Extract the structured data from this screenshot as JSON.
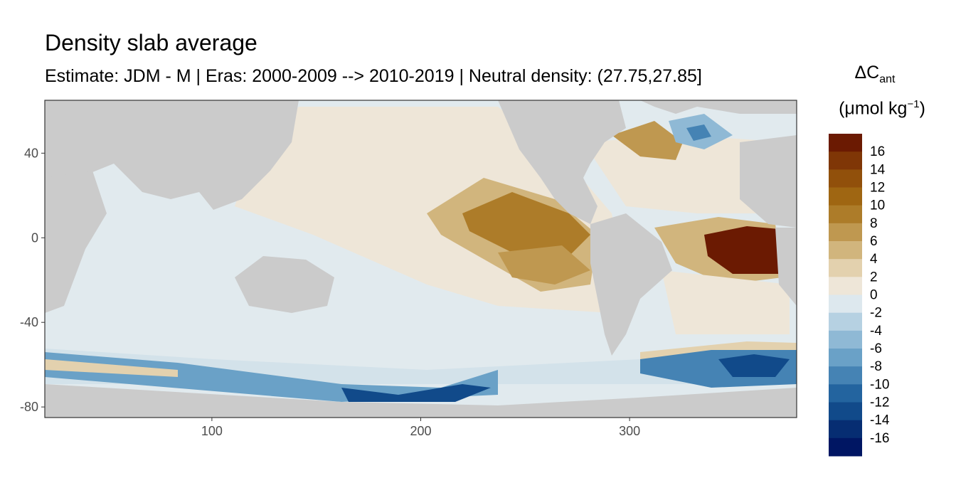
{
  "chart_data": {
    "type": "heatmap",
    "title": "Density slab average",
    "subtitle": "Estimate: JDM - M | Eras: 2000-2009 --> 2010-2019 | Neutral density: (27.75,27.85]",
    "xlabel": "",
    "ylabel": "",
    "x_ticks": [
      100,
      200,
      300
    ],
    "y_ticks": [
      40,
      0,
      -40,
      -80
    ],
    "xlim": [
      20,
      380
    ],
    "ylim": [
      -85,
      65
    ],
    "grid": false,
    "legend": {
      "placement": "right",
      "title_line1": "ΔC",
      "title_sub": "ant",
      "title_line2": "(μmol kg",
      "title_sup": "−1",
      "title_close": ")",
      "labels": [
        "16",
        "14",
        "12",
        "10",
        "8",
        "6",
        "4",
        "2",
        "0",
        "-2",
        "-4",
        "-6",
        "-8",
        "-10",
        "-12",
        "-14",
        "-16"
      ],
      "colors": [
        "#6b1a02",
        "#7f3606",
        "#91500b",
        "#9f6612",
        "#ad7c29",
        "#bf9850",
        "#d1b57d",
        "#e3d1ae",
        "#eee6d8",
        "#dde8ee",
        "#b6d1e2",
        "#8fb9d5",
        "#6aa1c7",
        "#4583b4",
        "#23649f",
        "#114a8a",
        "#062d72",
        "#001663"
      ]
    },
    "colors": {
      "land": "#cbcbcb",
      "ocean_background": "#e1eaee"
    }
  }
}
